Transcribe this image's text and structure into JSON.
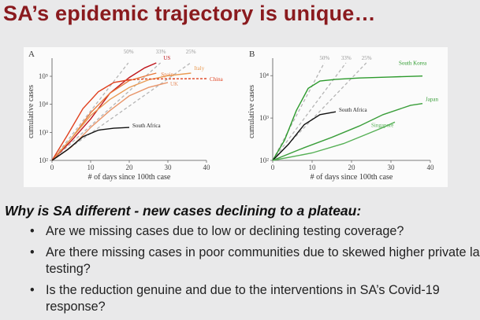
{
  "slide": {
    "title": "SA’s epidemic trajectory is unique…",
    "subheading": "Why is SA different - new cases declining to a plateau:",
    "bullets": [
      "Are we missing cases due to low or declining testing coverage?",
      "Are there missing cases in poor communities due to skewed higher private lab testing?",
      "Is the reduction genuine and due to the interventions in SA’s Covid-19 response?"
    ]
  },
  "chart_data": [
    {
      "type": "line",
      "panel_label": "A",
      "xlabel": "# of days since 100th case",
      "ylabel": "cumulative cases",
      "x_ticks": [
        0,
        10,
        20,
        30,
        40
      ],
      "y_ticks": [
        {
          "value": 100,
          "label": "10²"
        },
        {
          "value": 1000,
          "label": "10³"
        },
        {
          "value": 10000,
          "label": "10⁴"
        },
        {
          "value": 100000,
          "label": "10⁵"
        }
      ],
      "xlim": [
        0,
        40
      ],
      "ylim": [
        100,
        300000
      ],
      "y_scale": "log",
      "reference_lines": [
        {
          "label": "50%",
          "growth": 0.5
        },
        {
          "label": "33%",
          "growth": 0.33
        },
        {
          "label": "25%",
          "growth": 0.25
        }
      ],
      "series": [
        {
          "name": "US",
          "color": "#c0171c",
          "points": [
            [
              0,
              100
            ],
            [
              5,
              500
            ],
            [
              10,
              3000
            ],
            [
              15,
              25000
            ],
            [
              20,
              90000
            ],
            [
              24,
              200000
            ],
            [
              27,
              300000
            ]
          ]
        },
        {
          "name": "Spain",
          "color": "#e8783a",
          "points": [
            [
              0,
              100
            ],
            [
              5,
              600
            ],
            [
              10,
              5000
            ],
            [
              15,
              25000
            ],
            [
              20,
              70000
            ],
            [
              25,
              110000
            ],
            [
              27,
              130000
            ]
          ]
        },
        {
          "name": "Italy",
          "color": "#e99a52",
          "points": [
            [
              0,
              100
            ],
            [
              5,
              600
            ],
            [
              10,
              4000
            ],
            [
              15,
              15000
            ],
            [
              20,
              40000
            ],
            [
              25,
              75000
            ],
            [
              30,
              105000
            ],
            [
              36,
              130000
            ]
          ]
        },
        {
          "name": "China",
          "color": "#e0401e",
          "dashed_tail": true,
          "points": [
            [
              0,
              100
            ],
            [
              4,
              800
            ],
            [
              8,
              7000
            ],
            [
              12,
              28000
            ],
            [
              16,
              60000
            ],
            [
              20,
              75000
            ],
            [
              24,
              80000
            ],
            [
              30,
              81000
            ],
            [
              36,
              82000
            ],
            [
              40,
              82500
            ]
          ]
        },
        {
          "name": "UK",
          "color": "#e8956a",
          "points": [
            [
              0,
              100
            ],
            [
              5,
              300
            ],
            [
              10,
              1500
            ],
            [
              15,
              6000
            ],
            [
              20,
              20000
            ],
            [
              25,
              40000
            ],
            [
              30,
              60000
            ]
          ]
        },
        {
          "name": "South Africa",
          "color": "#111111",
          "points": [
            [
              0,
              100
            ],
            [
              4,
              240
            ],
            [
              8,
              700
            ],
            [
              12,
              1200
            ],
            [
              16,
              1400
            ],
            [
              20,
              1500
            ]
          ]
        }
      ]
    },
    {
      "type": "line",
      "panel_label": "B",
      "xlabel": "# of days since 100th case",
      "ylabel": "cumulative cases",
      "x_ticks": [
        0,
        10,
        20,
        30,
        40
      ],
      "y_ticks": [
        {
          "value": 100,
          "label": "10²"
        },
        {
          "value": 1000,
          "label": "10³"
        },
        {
          "value": 10000,
          "label": "10⁴"
        }
      ],
      "xlim": [
        0,
        40
      ],
      "ylim": [
        100,
        20000
      ],
      "y_scale": "log",
      "reference_lines": [
        {
          "label": "50%",
          "growth": 0.5
        },
        {
          "label": "33%",
          "growth": 0.33
        },
        {
          "label": "25%",
          "growth": 0.25
        }
      ],
      "series": [
        {
          "name": "South Korea",
          "color": "#2c9a2c",
          "points": [
            [
              0,
              100
            ],
            [
              3,
              300
            ],
            [
              6,
              1500
            ],
            [
              9,
              5000
            ],
            [
              12,
              7500
            ],
            [
              16,
              8200
            ],
            [
              22,
              8800
            ],
            [
              30,
              9300
            ],
            [
              38,
              9800
            ]
          ]
        },
        {
          "name": "South Africa",
          "color": "#111111",
          "points": [
            [
              0,
              100
            ],
            [
              4,
              240
            ],
            [
              8,
              700
            ],
            [
              12,
              1200
            ],
            [
              16,
              1400
            ]
          ]
        },
        {
          "name": "Japan",
          "color": "#3a9e3a",
          "points": [
            [
              0,
              100
            ],
            [
              8,
              200
            ],
            [
              15,
              350
            ],
            [
              22,
              650
            ],
            [
              28,
              1200
            ],
            [
              35,
              2000
            ],
            [
              38,
              2200
            ]
          ]
        },
        {
          "name": "Singapore",
          "color": "#55b055",
          "points": [
            [
              0,
              100
            ],
            [
              10,
              150
            ],
            [
              18,
              250
            ],
            [
              24,
              420
            ],
            [
              28,
              600
            ],
            [
              31,
              800
            ]
          ]
        }
      ]
    }
  ]
}
